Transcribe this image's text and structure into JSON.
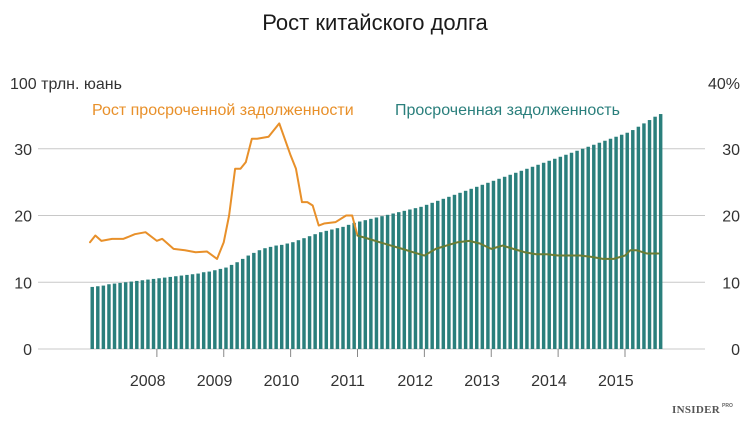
{
  "chart_data": {
    "type": "bar",
    "title": "Рост китайского долга",
    "left_axis_unit": "100 трлн. юань",
    "right_axis_unit": "40%",
    "ylim_left": [
      0,
      40
    ],
    "ylim_right": [
      0,
      40
    ],
    "left_ticks": [
      "0",
      "10",
      "20",
      "30"
    ],
    "right_ticks": [
      "0",
      "10",
      "20",
      "30"
    ],
    "x_tick_labels": [
      "2008",
      "2009",
      "2010",
      "2011",
      "2012",
      "2013",
      "2014",
      "2015"
    ],
    "x_range": [
      2007.0,
      2015.55
    ],
    "gridlines": true,
    "colors": {
      "bars": "#2a7f7c",
      "line": "#e8902a",
      "line_after_2011": "#6b7d34",
      "axis_text": "#333333"
    },
    "series": [
      {
        "name": "Просроченная задолженность",
        "type": "bar",
        "axis": "left",
        "frequency": "monthly",
        "start": "2007-01",
        "values": [
          9.3,
          9.4,
          9.5,
          9.7,
          9.8,
          9.9,
          10.0,
          10.1,
          10.2,
          10.3,
          10.4,
          10.5,
          10.6,
          10.7,
          10.8,
          10.9,
          11.0,
          11.1,
          11.2,
          11.3,
          11.5,
          11.6,
          11.8,
          12.0,
          12.2,
          12.6,
          13.0,
          13.5,
          14.0,
          14.4,
          14.8,
          15.1,
          15.3,
          15.5,
          15.6,
          15.8,
          16.0,
          16.3,
          16.6,
          16.9,
          17.2,
          17.5,
          17.7,
          17.9,
          18.1,
          18.3,
          18.6,
          18.9,
          19.1,
          19.3,
          19.5,
          19.7,
          19.9,
          20.1,
          20.3,
          20.5,
          20.7,
          20.9,
          21.1,
          21.3,
          21.6,
          21.9,
          22.2,
          22.5,
          22.8,
          23.1,
          23.4,
          23.7,
          24.0,
          24.3,
          24.6,
          24.9,
          25.2,
          25.5,
          25.8,
          26.1,
          26.4,
          26.7,
          27.0,
          27.3,
          27.6,
          27.9,
          28.2,
          28.5,
          28.8,
          29.1,
          29.4,
          29.7,
          30.0,
          30.3,
          30.6,
          30.9,
          31.2,
          31.5,
          31.8,
          32.1,
          32.4,
          32.8,
          33.3,
          33.8,
          34.3,
          34.8,
          35.2
        ]
      },
      {
        "name": "Рост просроченной задолженности",
        "type": "line",
        "axis": "right",
        "unit": "%",
        "points": [
          [
            2007.0,
            16.0
          ],
          [
            2007.08,
            17.0
          ],
          [
            2007.17,
            16.2
          ],
          [
            2007.33,
            16.5
          ],
          [
            2007.5,
            16.5
          ],
          [
            2007.67,
            17.2
          ],
          [
            2007.83,
            17.5
          ],
          [
            2008.0,
            16.2
          ],
          [
            2008.08,
            16.5
          ],
          [
            2008.25,
            15.0
          ],
          [
            2008.42,
            14.8
          ],
          [
            2008.58,
            14.5
          ],
          [
            2008.75,
            14.6
          ],
          [
            2008.9,
            13.5
          ],
          [
            2009.0,
            16.0
          ],
          [
            2009.08,
            20.0
          ],
          [
            2009.17,
            27.0
          ],
          [
            2009.25,
            27.0
          ],
          [
            2009.33,
            28.0
          ],
          [
            2009.42,
            31.5
          ],
          [
            2009.5,
            31.5
          ],
          [
            2009.67,
            31.8
          ],
          [
            2009.83,
            33.8
          ],
          [
            2010.0,
            29.0
          ],
          [
            2010.08,
            27.0
          ],
          [
            2010.17,
            22.0
          ],
          [
            2010.25,
            22.0
          ],
          [
            2010.33,
            21.5
          ],
          [
            2010.42,
            18.5
          ],
          [
            2010.5,
            18.8
          ],
          [
            2010.67,
            19.0
          ],
          [
            2010.83,
            20.0
          ],
          [
            2010.92,
            20.0
          ],
          [
            2011.0,
            17.0
          ],
          [
            2011.17,
            16.5
          ],
          [
            2011.33,
            16.0
          ],
          [
            2011.5,
            15.5
          ],
          [
            2011.67,
            15.0
          ],
          [
            2011.83,
            14.5
          ],
          [
            2012.0,
            14.0
          ],
          [
            2012.17,
            15.0
          ],
          [
            2012.33,
            15.5
          ],
          [
            2012.5,
            16.0
          ],
          [
            2012.67,
            16.2
          ],
          [
            2012.83,
            15.8
          ],
          [
            2013.0,
            15.0
          ],
          [
            2013.17,
            15.5
          ],
          [
            2013.33,
            15.0
          ],
          [
            2013.5,
            14.5
          ],
          [
            2013.67,
            14.2
          ],
          [
            2013.83,
            14.2
          ],
          [
            2014.0,
            14.0
          ],
          [
            2014.17,
            14.0
          ],
          [
            2014.33,
            14.0
          ],
          [
            2014.5,
            13.8
          ],
          [
            2014.67,
            13.5
          ],
          [
            2014.83,
            13.5
          ],
          [
            2015.0,
            14.0
          ],
          [
            2015.08,
            14.8
          ],
          [
            2015.17,
            14.8
          ],
          [
            2015.33,
            14.3
          ],
          [
            2015.5,
            14.3
          ]
        ],
        "split_color_at": 2011.0
      }
    ],
    "legend": {
      "placement": "top",
      "line_label": "Рост просроченной задолженности",
      "bar_label": "Просроченная задолженность"
    }
  },
  "brand": {
    "name": "INSIDER",
    "sup": "PRO"
  }
}
